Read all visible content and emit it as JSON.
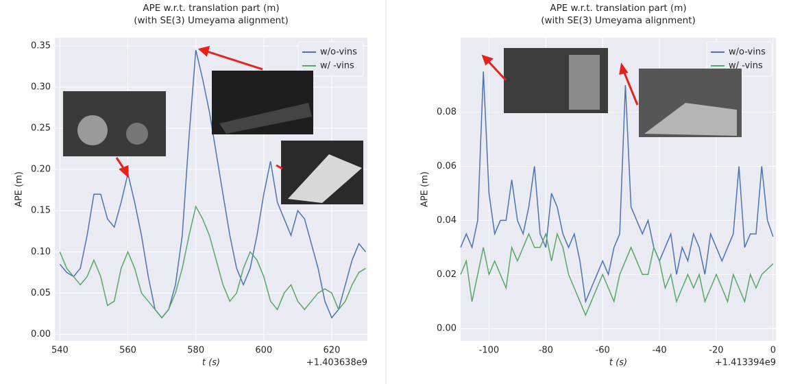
{
  "chart_data": [
    {
      "type": "line",
      "title": "APE w.r.t. translation part (m)",
      "subtitle": "(with SE(3) Umeyama alignment)",
      "xlabel": "t (s)",
      "ylabel": "APE (m)",
      "x_offset_text": "+1.403638e9",
      "x": [
        540,
        542,
        544,
        546,
        548,
        550,
        552,
        554,
        556,
        558,
        560,
        562,
        564,
        566,
        568,
        570,
        572,
        574,
        576,
        578,
        580,
        582,
        584,
        586,
        588,
        590,
        592,
        594,
        596,
        598,
        600,
        602,
        604,
        606,
        608,
        610,
        612,
        614,
        616,
        618,
        620,
        622,
        624,
        626,
        628,
        630
      ],
      "series": [
        {
          "name": "w/o-vins",
          "color": "#4c72b0",
          "values": [
            0.085,
            0.075,
            0.07,
            0.08,
            0.12,
            0.17,
            0.17,
            0.14,
            0.13,
            0.16,
            0.195,
            0.16,
            0.12,
            0.07,
            0.03,
            0.02,
            0.03,
            0.06,
            0.12,
            0.24,
            0.345,
            0.31,
            0.27,
            0.22,
            0.17,
            0.12,
            0.08,
            0.06,
            0.08,
            0.12,
            0.17,
            0.21,
            0.16,
            0.14,
            0.12,
            0.15,
            0.14,
            0.11,
            0.08,
            0.04,
            0.02,
            0.03,
            0.06,
            0.09,
            0.11,
            0.1
          ]
        },
        {
          "name": "w/ -vins",
          "color": "#55a868",
          "values": [
            0.1,
            0.08,
            0.07,
            0.06,
            0.07,
            0.09,
            0.07,
            0.035,
            0.04,
            0.08,
            0.1,
            0.08,
            0.05,
            0.04,
            0.03,
            0.02,
            0.03,
            0.05,
            0.08,
            0.12,
            0.155,
            0.14,
            0.12,
            0.09,
            0.06,
            0.04,
            0.05,
            0.08,
            0.1,
            0.09,
            0.07,
            0.04,
            0.03,
            0.05,
            0.06,
            0.04,
            0.03,
            0.04,
            0.05,
            0.055,
            0.05,
            0.03,
            0.04,
            0.06,
            0.075,
            0.08
          ]
        }
      ],
      "xlim": [
        538.5,
        630.5
      ],
      "ylim": [
        -0.008,
        0.36
      ],
      "xticks": [
        540,
        560,
        580,
        600,
        620
      ],
      "yticks": [
        {
          "value": 0,
          "label": "0.00"
        },
        {
          "value": 0.05,
          "label": "0.05"
        },
        {
          "value": 0.1,
          "label": "0.10"
        },
        {
          "value": 0.15,
          "label": "0.15"
        },
        {
          "value": 0.2,
          "label": "0.20"
        },
        {
          "value": 0.25,
          "label": "0.25"
        },
        {
          "value": 0.3,
          "label": "0.30"
        },
        {
          "value": 0.35,
          "label": "0.35"
        }
      ],
      "grid": true,
      "legend": "upper right"
    },
    {
      "type": "line",
      "title": "APE w.r.t. translation part (m)",
      "subtitle": "(with SE(3) Umeyama alignment)",
      "xlabel": "t (s)",
      "ylabel": "APE (m)",
      "x_offset_text": "+1.413394e9",
      "x": [
        -110,
        -108,
        -106,
        -104,
        -102,
        -100,
        -98,
        -96,
        -94,
        -92,
        -90,
        -88,
        -86,
        -84,
        -82,
        -80,
        -78,
        -76,
        -74,
        -72,
        -70,
        -68,
        -66,
        -64,
        -62,
        -60,
        -58,
        -56,
        -54,
        -52,
        -50,
        -48,
        -46,
        -44,
        -42,
        -40,
        -38,
        -36,
        -34,
        -32,
        -30,
        -28,
        -26,
        -24,
        -22,
        -20,
        -18,
        -16,
        -14,
        -12,
        -10,
        -8,
        -6,
        -4,
        -2,
        0
      ],
      "series": [
        {
          "name": "w/o-vins",
          "color": "#4c72b0",
          "values": [
            0.03,
            0.035,
            0.03,
            0.04,
            0.095,
            0.05,
            0.035,
            0.04,
            0.04,
            0.055,
            0.04,
            0.035,
            0.045,
            0.06,
            0.035,
            0.03,
            0.05,
            0.045,
            0.035,
            0.03,
            0.035,
            0.025,
            0.01,
            0.015,
            0.02,
            0.025,
            0.02,
            0.03,
            0.035,
            0.09,
            0.045,
            0.04,
            0.035,
            0.04,
            0.03,
            0.025,
            0.03,
            0.035,
            0.02,
            0.03,
            0.025,
            0.035,
            0.03,
            0.02,
            0.035,
            0.03,
            0.025,
            0.03,
            0.035,
            0.06,
            0.03,
            0.035,
            0.035,
            0.06,
            0.04,
            0.034
          ]
        },
        {
          "name": "w/ -vins",
          "color": "#55a868",
          "values": [
            0.02,
            0.025,
            0.01,
            0.02,
            0.03,
            0.02,
            0.025,
            0.02,
            0.015,
            0.03,
            0.025,
            0.03,
            0.035,
            0.03,
            0.03,
            0.035,
            0.025,
            0.035,
            0.03,
            0.02,
            0.015,
            0.01,
            0.005,
            0.01,
            0.015,
            0.02,
            0.015,
            0.01,
            0.02,
            0.025,
            0.03,
            0.025,
            0.02,
            0.02,
            0.03,
            0.025,
            0.015,
            0.02,
            0.01,
            0.015,
            0.02,
            0.015,
            0.02,
            0.01,
            0.015,
            0.02,
            0.015,
            0.01,
            0.02,
            0.015,
            0.01,
            0.02,
            0.015,
            0.02,
            0.022,
            0.024
          ]
        }
      ],
      "xlim": [
        -110,
        1
      ],
      "ylim": [
        -0.0045,
        0.1075
      ],
      "xticks": [
        -100,
        -80,
        -60,
        -40,
        -20,
        0
      ],
      "yticks": [
        {
          "value": 0,
          "label": "0.00"
        },
        {
          "value": 0.02,
          "label": "0.02"
        },
        {
          "value": 0.04,
          "label": "0.04"
        },
        {
          "value": 0.06,
          "label": "0.06"
        },
        {
          "value": 0.08,
          "label": "0.08"
        }
      ],
      "grid": true,
      "legend": "upper right"
    }
  ]
}
